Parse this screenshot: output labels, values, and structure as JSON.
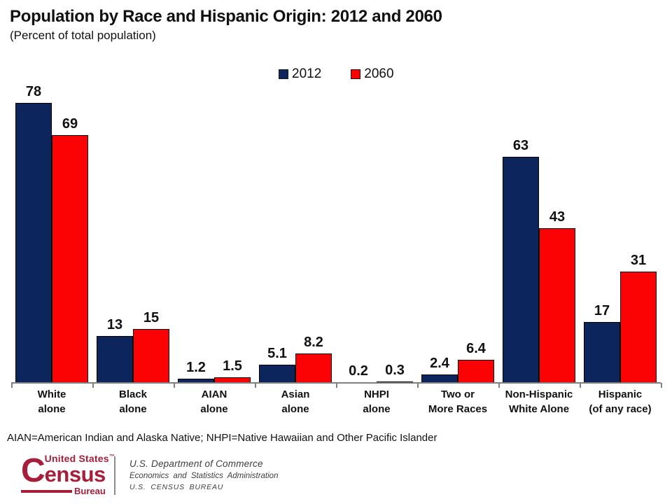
{
  "title": "Population by Race and Hispanic Origin: 2012 and 2060",
  "subtitle": "(Percent of total population)",
  "note": "AIAN=American Indian and Alaska Native; NHPI=Native Hawaiian and Other Pacific Islander",
  "chart_data": {
    "type": "bar",
    "title": "Population by Race and Hispanic Origin: 2012 and 2060",
    "subtitle": "(Percent of total population)",
    "categories": [
      "White\nalone",
      "Black\nalone",
      "AIAN\nalone",
      "Asian\nalone",
      "NHPI\nalone",
      "Two or\nMore Races",
      "Non-Hispanic\nWhite Alone",
      "Hispanic\n(of any race)"
    ],
    "series": [
      {
        "name": "2012",
        "color": "#0C255C",
        "values": [
          78,
          13,
          1.2,
          5.1,
          0.2,
          2.4,
          63,
          17
        ],
        "value_labels": [
          "78",
          "13",
          "1.2",
          "5.1",
          "0.2",
          "2.4",
          "63",
          "17"
        ]
      },
      {
        "name": "2060",
        "color": "#FB0204",
        "values": [
          69,
          15,
          1.5,
          8.2,
          0.3,
          6.4,
          43,
          31
        ],
        "value_labels": [
          "69",
          "15",
          "1.5",
          "8.2",
          "0.3",
          "6.4",
          "43",
          "31"
        ]
      }
    ],
    "ylabel": "Percent of total population",
    "xlabel": "",
    "ylim": [
      0,
      85
    ],
    "grid": false,
    "legend_position": "top-center",
    "value_labels_shown": true,
    "axis_color": "#808080"
  },
  "footer": {
    "logo": {
      "united_states": "United States",
      "trademark": "™",
      "census_c": "C",
      "census_rest": "ensus",
      "bureau": "Bureau",
      "color": "#A61E3A"
    },
    "dept_line1": "U.S. Department of Commerce",
    "dept_line2": "Economics and Statistics Administration",
    "dept_line3": "U.S. CENSUS BUREAU"
  }
}
